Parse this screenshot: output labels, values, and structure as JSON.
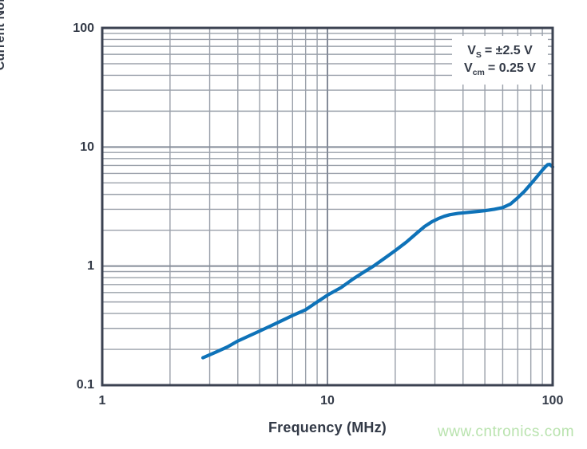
{
  "chart_data": {
    "type": "line",
    "title": "",
    "xlabel": "Frequency (MHz)",
    "ylabel": "Current Noise (pA√Hz)",
    "ylabel_parts": {
      "prefix": "Current Noise (pA",
      "sqrt": "√",
      "radicand": "Hz",
      "suffix": ")"
    },
    "x_scale": "log",
    "y_scale": "log",
    "xlim": [
      1,
      100
    ],
    "ylim": [
      0.1,
      100
    ],
    "x_tick_labels": [
      "1",
      "10",
      "100"
    ],
    "y_tick_labels": [
      "100",
      "10",
      "1",
      "0.1"
    ],
    "grid": "log major and minor gridlines, on",
    "legend_position": "none",
    "annotation": {
      "line1": {
        "base": "V",
        "sub": "S",
        "rest": "= ±2.5 V"
      },
      "line2": {
        "base": "V",
        "sub": "cm",
        "rest": "= 0.25 V"
      }
    },
    "series": [
      {
        "name": "current-noise-vs-frequency",
        "color": "#0e72b8",
        "points": [
          [
            2.8,
            0.17
          ],
          [
            3.2,
            0.19
          ],
          [
            3.6,
            0.21
          ],
          [
            4.0,
            0.235
          ],
          [
            4.5,
            0.26
          ],
          [
            5.0,
            0.285
          ],
          [
            5.6,
            0.315
          ],
          [
            6.3,
            0.35
          ],
          [
            7.0,
            0.385
          ],
          [
            8.0,
            0.43
          ],
          [
            9.0,
            0.5
          ],
          [
            10,
            0.57
          ],
          [
            11.5,
            0.66
          ],
          [
            13,
            0.78
          ],
          [
            14.5,
            0.89
          ],
          [
            16,
            1.0
          ],
          [
            18,
            1.17
          ],
          [
            20,
            1.35
          ],
          [
            22.5,
            1.6
          ],
          [
            25,
            1.9
          ],
          [
            27,
            2.15
          ],
          [
            29,
            2.35
          ],
          [
            31,
            2.5
          ],
          [
            33,
            2.62
          ],
          [
            35,
            2.7
          ],
          [
            38,
            2.77
          ],
          [
            40,
            2.8
          ],
          [
            45,
            2.86
          ],
          [
            50,
            2.92
          ],
          [
            55,
            3.0
          ],
          [
            60,
            3.1
          ],
          [
            65,
            3.32
          ],
          [
            70,
            3.75
          ],
          [
            75,
            4.25
          ],
          [
            80,
            4.9
          ],
          [
            85,
            5.6
          ],
          [
            90,
            6.4
          ],
          [
            93,
            6.85
          ],
          [
            95,
            7.1
          ],
          [
            97,
            7.15
          ],
          [
            100,
            6.8
          ]
        ]
      }
    ]
  },
  "watermark": "www.cntronics.com",
  "colors": {
    "curve": "#0e72b8",
    "grid_minor": "#9aa0aa",
    "grid_major": "#858c99",
    "frame": "#3b4251",
    "text": "#333a47",
    "watermark": "#b9e3ae"
  }
}
